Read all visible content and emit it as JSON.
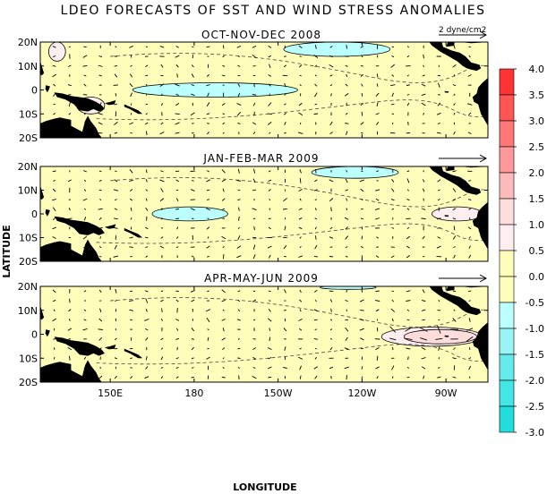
{
  "chart_data": {
    "type": "heatmap",
    "title": "LDEO FORECASTS OF SST AND WIND STRESS ANOMALIES",
    "xlabel": "LONGITUDE",
    "ylabel": "LATITUDE",
    "x_ticks": [
      "150E",
      "180",
      "150W",
      "120W",
      "90W"
    ],
    "y_ticks": [
      "20N",
      "10N",
      "0",
      "10S",
      "20S"
    ],
    "reference_vector_label": "2 dyne/cm2",
    "colorbar": {
      "levels": [
        "4.0",
        "3.5",
        "3.0",
        "2.5",
        "2.0",
        "1.5",
        "1.0",
        "0.5",
        "0.0",
        "-0.5",
        "-1.0",
        "-1.5",
        "-2.0",
        "-2.5",
        "-3.0"
      ],
      "colors": [
        "#ff3333",
        "#ff5555",
        "#ff7777",
        "#ff9999",
        "#ffbbbb",
        "#ffdddd",
        "#ffeef0",
        "#ffffbb",
        "#ffffbb",
        "#bbffff",
        "#99f5f5",
        "#66ebeb",
        "#44e5e5",
        "#22dddd"
      ]
    },
    "land_color": "#000000",
    "ocean_color": "#ffffbb",
    "panels": [
      {
        "title": "OCT-NOV-DEC 2008",
        "anomalies": [
          {
            "type": "cold",
            "lon_range": [
              158,
              217
            ],
            "lat_range": [
              -3,
              3
            ],
            "level": -0.5
          },
          {
            "type": "cold",
            "lon_range": [
              212,
              250
            ],
            "lat_range": [
              14,
              20
            ],
            "level": -0.5
          },
          {
            "type": "warm",
            "lon_range": [
              128,
              134
            ],
            "lat_range": [
              12,
              20
            ],
            "level": 0.5
          },
          {
            "type": "warm",
            "lon_range": [
              138,
              148
            ],
            "lat_range": [
              -10,
              -3
            ],
            "level": 0.5
          }
        ]
      },
      {
        "title": "JAN-FEB-MAR 2009",
        "anomalies": [
          {
            "type": "cold",
            "lon_range": [
              165,
              192
            ],
            "lat_range": [
              -3,
              3
            ],
            "level": -0.5
          },
          {
            "type": "cold",
            "lon_range": [
              222,
              253
            ],
            "lat_range": [
              15,
              20
            ],
            "level": -0.5
          },
          {
            "type": "warm",
            "lon_range": [
              265,
              283
            ],
            "lat_range": [
              -3,
              3
            ],
            "level": 0.5
          }
        ]
      },
      {
        "title": "APR-MAY-JUN 2009",
        "anomalies": [
          {
            "type": "warm",
            "lon_range": [
              247,
              283
            ],
            "lat_range": [
              -5,
              3
            ],
            "level": 0.5
          },
          {
            "type": "warm",
            "lon_range": [
              255,
              281
            ],
            "lat_range": [
              -4,
              2
            ],
            "level": 1.0
          },
          {
            "type": "cold",
            "lon_range": [
              225,
              245
            ],
            "lat_range": [
              19,
              20
            ],
            "level": -0.5
          }
        ]
      }
    ],
    "lon_range": [
      125,
      285
    ],
    "lat_range": [
      -20,
      20
    ]
  }
}
